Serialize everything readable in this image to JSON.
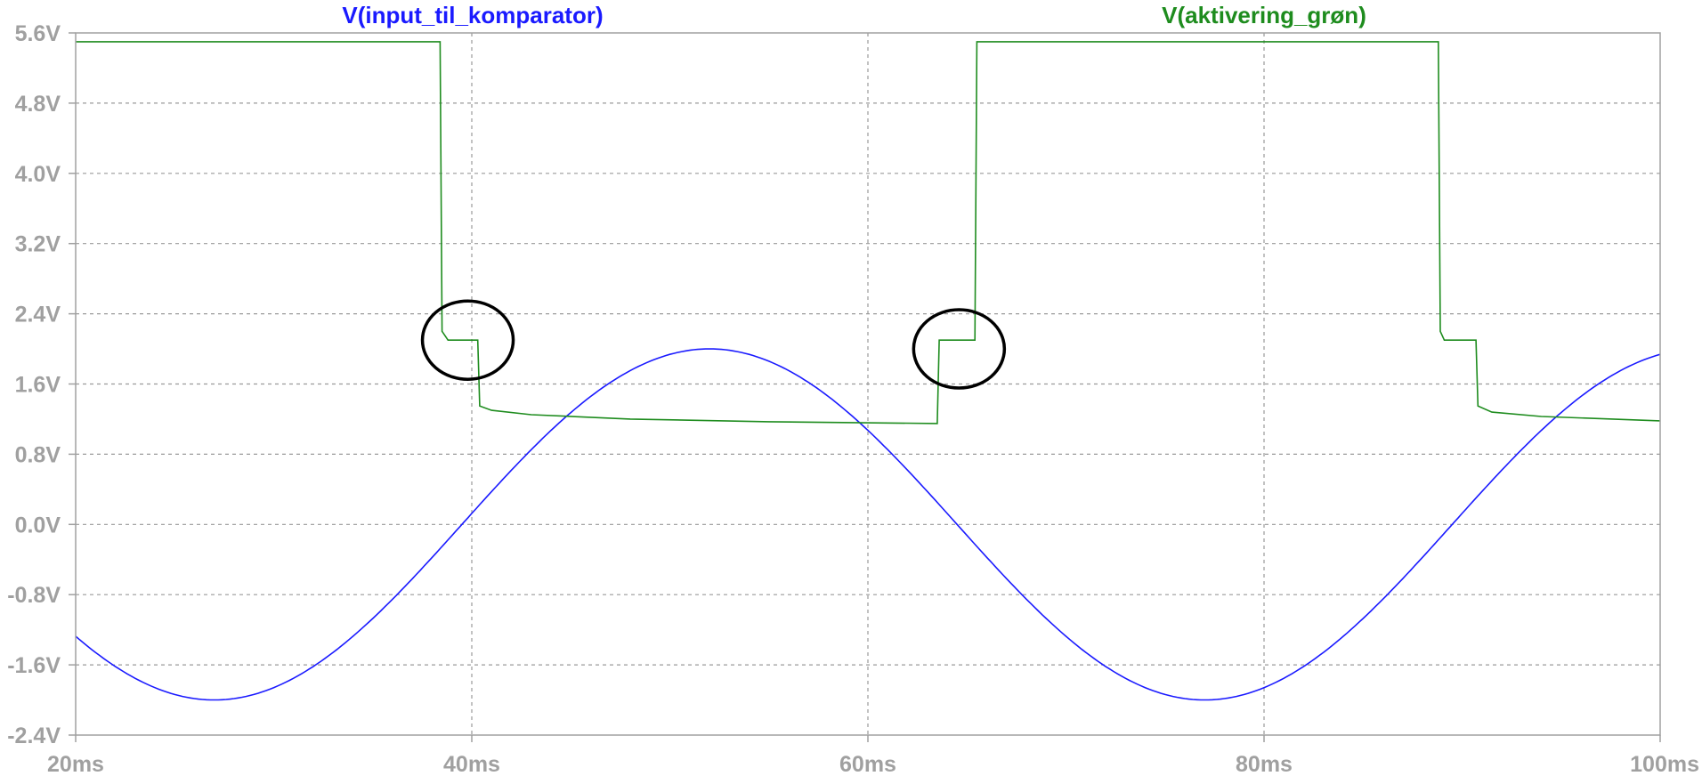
{
  "chart_data": {
    "type": "line",
    "title": "",
    "xlabel": "",
    "ylabel": "",
    "xlim": [
      20,
      100
    ],
    "ylim": [
      -2.4,
      5.6
    ],
    "x_unit": "ms",
    "y_unit": "V",
    "x_ticks": [
      "20ms",
      "40ms",
      "60ms",
      "80ms",
      "100ms"
    ],
    "y_ticks": [
      "5.6V",
      "4.8V",
      "4.0V",
      "3.2V",
      "2.4V",
      "1.6V",
      "0.8V",
      "0.0V",
      "-0.8V",
      "-1.6V",
      "-2.4V"
    ],
    "grid": true,
    "series": [
      {
        "name": "V(input_til_komparator)",
        "color": "#1a1aff",
        "kind": "sine",
        "amplitude": 2.0,
        "period_ms": 50,
        "peak_at_ms": 52,
        "offset": 0.0
      },
      {
        "name": "V(aktivering_grøn)",
        "color": "#1e8c1e",
        "kind": "step",
        "points": [
          [
            20,
            5.5
          ],
          [
            38.4,
            5.5
          ],
          [
            38.5,
            2.2
          ],
          [
            38.8,
            2.1
          ],
          [
            40.3,
            2.1
          ],
          [
            40.4,
            1.35
          ],
          [
            41,
            1.3
          ],
          [
            43,
            1.25
          ],
          [
            48,
            1.2
          ],
          [
            55,
            1.17
          ],
          [
            63.5,
            1.15
          ],
          [
            63.6,
            2.1
          ],
          [
            65.4,
            2.1
          ],
          [
            65.5,
            5.5
          ],
          [
            88.8,
            5.5
          ],
          [
            88.9,
            2.2
          ],
          [
            89.1,
            2.1
          ],
          [
            90.7,
            2.1
          ],
          [
            90.8,
            1.35
          ],
          [
            91.5,
            1.28
          ],
          [
            94,
            1.23
          ],
          [
            100,
            1.18
          ]
        ]
      }
    ],
    "annotations": [
      {
        "shape": "ellipse",
        "color": "#000000",
        "at_ms": 39.8,
        "at_v": 2.1
      },
      {
        "shape": "ellipse",
        "color": "#000000",
        "at_ms": 64.6,
        "at_v": 2.0
      }
    ]
  }
}
